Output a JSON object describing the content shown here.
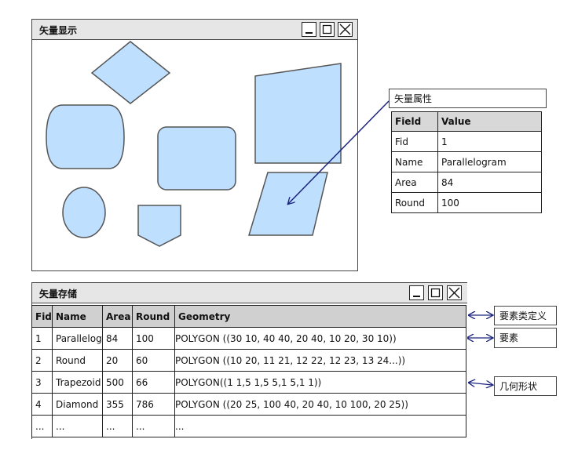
{
  "display_window": {
    "title": "矢量显示"
  },
  "attribute_panel": {
    "title": "矢量属性",
    "headers": [
      "Field",
      "Value"
    ],
    "rows": [
      {
        "field": "Fid",
        "value": "1"
      },
      {
        "field": "Name",
        "value": "Parallelogram"
      },
      {
        "field": "Area",
        "value": "84"
      },
      {
        "field": "Round",
        "value": "100"
      }
    ]
  },
  "storage_window": {
    "title": "矢量存储",
    "headers": [
      "Fid",
      "Name",
      "Area",
      "Round",
      "Geometry"
    ],
    "rows": [
      {
        "fid": "1",
        "name": "Parallelogr",
        "area": "84",
        "round": "100",
        "geometry": "POLYGON ((30 10, 40 40, 20 40, 10 20, 30 10))"
      },
      {
        "fid": "2",
        "name": "Round",
        "area": "20",
        "round": "60",
        "geometry": "POLYGON ((10 20, 11 21, 12 22, 12 23, 13 24...))"
      },
      {
        "fid": "3",
        "name": "Trapezoid",
        "area": "500",
        "round": "66",
        "geometry": "POLYGON((1 1,5 1,5 5,1 5,1 1))"
      },
      {
        "fid": "4",
        "name": "Diamond",
        "area": "355",
        "round": "786",
        "geometry": "POLYGON ((20 25, 100 40, 20 40, 10 100, 20 25))"
      },
      {
        "fid": "...",
        "name": "...",
        "area": "...",
        "round": "...",
        "geometry": "..."
      }
    ]
  },
  "callouts": {
    "feature_class_definition": "要素类定义",
    "feature": "要素",
    "geometry_shape": "几何形状"
  },
  "colors": {
    "shape_fill": "#bfdfff",
    "shape_stroke": "#555555",
    "header_highlight": "#2a4fd6",
    "feature_highlight": "#e01010",
    "geometry_highlight": "#22dd22",
    "arrow": "#1a237e"
  }
}
